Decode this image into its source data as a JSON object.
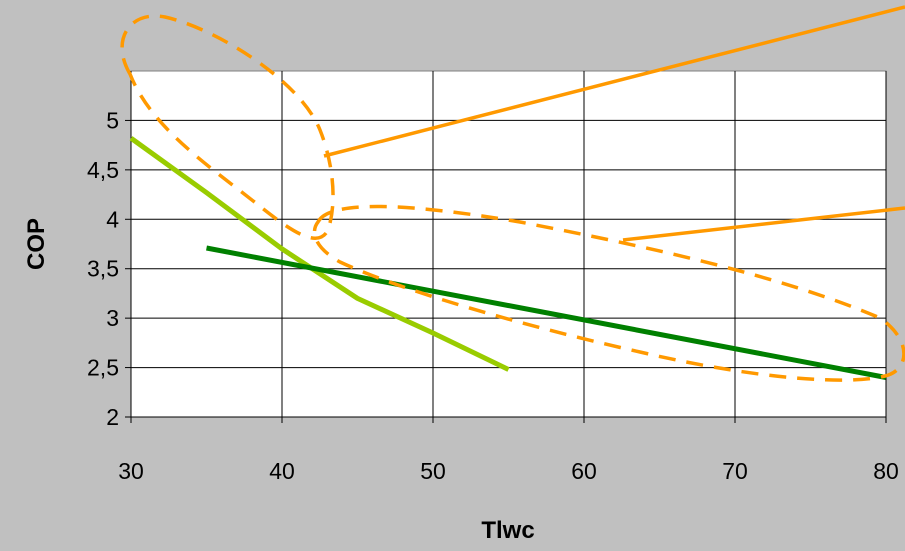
{
  "chart_data": {
    "type": "line",
    "title": "",
    "xlabel": "Tlwc",
    "ylabel": "COP",
    "xlim": [
      30,
      80
    ],
    "ylim": [
      2,
      5.5
    ],
    "x_ticks": [
      "30",
      "40",
      "50",
      "60",
      "70",
      "80"
    ],
    "y_ticks": [
      "2",
      "2,5",
      "3",
      "3,5",
      "4",
      "4,5",
      "5"
    ],
    "x_tick_values": [
      30,
      40,
      50,
      60,
      70,
      80
    ],
    "y_tick_values": [
      2,
      2.5,
      3,
      3.5,
      4,
      4.5,
      5
    ],
    "grid": true,
    "legend": "none",
    "series": [
      {
        "color": "#99cc00",
        "x": [
          30,
          35,
          40,
          45,
          50,
          55
        ],
        "y": [
          4.82,
          4.27,
          3.7,
          3.2,
          2.85,
          2.48
        ]
      },
      {
        "color": "#008000",
        "x": [
          35,
          80
        ],
        "y": [
          3.71,
          2.4
        ]
      }
    ],
    "annotations": {
      "color": "#ff9900",
      "dashed_ellipses": 2,
      "leader_lines": 2
    }
  }
}
